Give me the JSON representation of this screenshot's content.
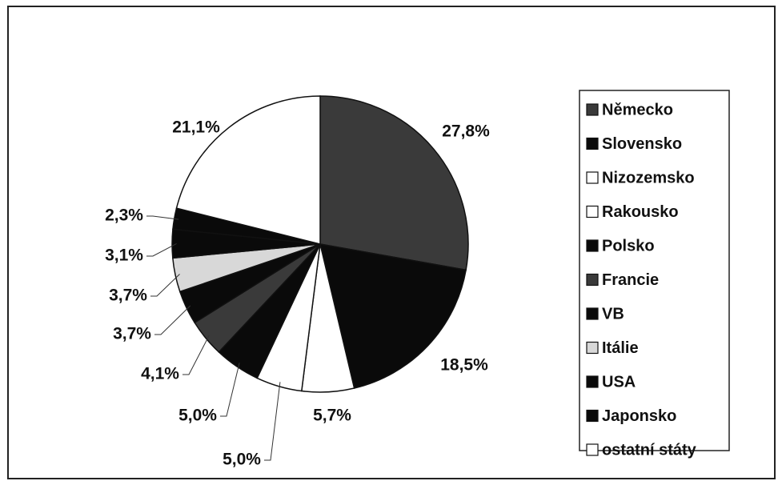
{
  "chart_data": {
    "type": "pie",
    "categories": [
      "Německo",
      "Slovensko",
      "Nizozemsko",
      "Rakousko",
      "Polsko",
      "Francie",
      "VB",
      "Itálie",
      "USA",
      "Japonsko",
      "ostatní státy"
    ],
    "values": [
      27.8,
      18.5,
      5.7,
      5.0,
      5.0,
      4.1,
      3.7,
      3.7,
      3.1,
      2.3,
      21.1
    ],
    "value_labels": [
      "27,8%",
      "18,5%",
      "5,7%",
      "5,0%",
      "5,0%",
      "4,1%",
      "3,7%",
      "3,7%",
      "3,1%",
      "2,3%",
      "21,1%"
    ],
    "colors": [
      "#3a3a3a",
      "#0a0a0a",
      "#ffffff",
      "#ffffff",
      "#0a0a0a",
      "#3a3a3a",
      "#0a0a0a",
      "#d8d8d8",
      "#0a0a0a",
      "#0a0a0a",
      "#ffffff"
    ],
    "legend": "right"
  }
}
